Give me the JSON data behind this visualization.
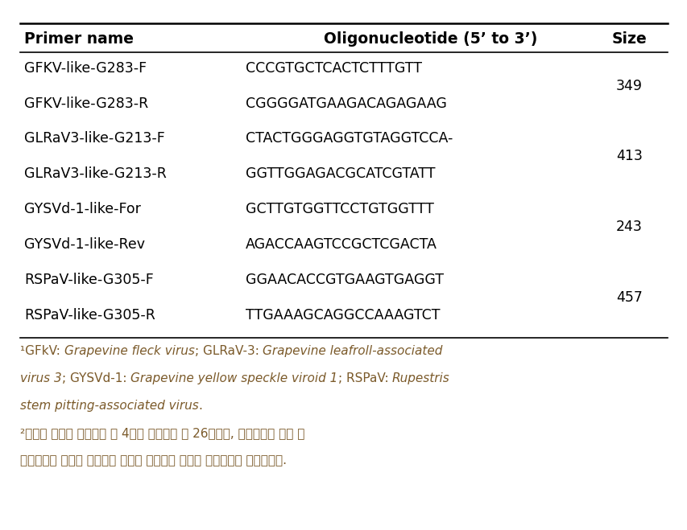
{
  "header": [
    "Primer name",
    "Oligonucleotide (5’ to 3’)",
    "Size"
  ],
  "rows": [
    [
      "GFKV-like-G283-F",
      "CCCGTGCTCACTCTTTGTT",
      ""
    ],
    [
      "GFKV-like-G283-R",
      "CGGGGATGAAGACAGAGAAG",
      "349"
    ],
    [
      "GLRaV3-like-G213-F",
      "CTACTGGGAGGTGTAGGTCCA-",
      ""
    ],
    [
      "GLRaV3-like-G213-R",
      "GGTTGGAGACGCATCGTATT",
      "413"
    ],
    [
      "GYSVd-1-like-For",
      "GCTTGTGGTTCCTGTGGTTT",
      ""
    ],
    [
      "GYSVd-1-like-Rev",
      "AGACCAAGTCCGCTCGACTA",
      "243"
    ],
    [
      "RSPaV-like-G305-F",
      "GGAACACCGTGAAGTGAGGT",
      ""
    ],
    [
      "RSPaV-like-G305-R",
      "TTGAAAGCAGGCCAAAGTCT",
      "457"
    ]
  ],
  "size_pairs": [
    {
      "value": "349",
      "rows": [
        0,
        1
      ]
    },
    {
      "value": "413",
      "rows": [
        2,
        3
      ]
    },
    {
      "value": "243",
      "rows": [
        4,
        5
      ]
    },
    {
      "value": "457",
      "rows": [
        6,
        7
      ]
    }
  ],
  "footnote_color": "#7B5A2A",
  "text_color": "#000000",
  "bg_color": "#ffffff",
  "header_fontsize": 13.5,
  "data_fontsize": 12.5,
  "footnote_fontsize": 11.0
}
